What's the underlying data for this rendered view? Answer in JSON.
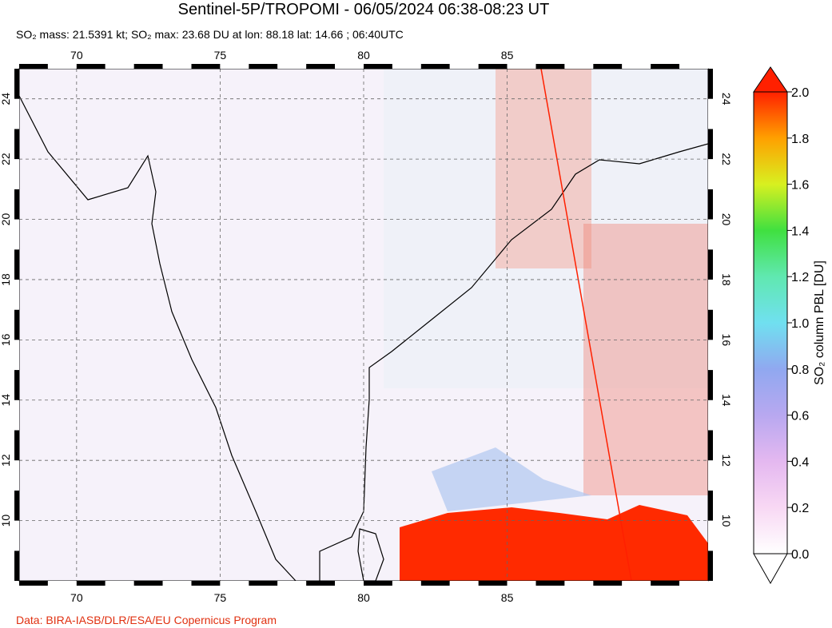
{
  "title": "Sentinel-5P/TROPOMI - 06/05/2024 06:38-08:23 UT",
  "subtitle": "SO₂ mass: 21.5391 kt; SO₂ max: 23.68 DU at lon: 88.18 lat: 14.66 ; 06:40UTC",
  "map": {
    "xlim": [
      68,
      92
    ],
    "ylim": [
      8,
      25
    ],
    "xticks": [
      70,
      75,
      80,
      85
    ],
    "yticks": [
      10,
      12,
      14,
      16,
      18,
      20,
      22,
      24
    ]
  },
  "colorbar": {
    "label": "SO₂ column PBL [DU]",
    "lim": [
      0,
      2
    ],
    "ticks": [
      {
        "value": 0,
        "label": "0.0"
      },
      {
        "value": 0.2,
        "label": "0.2"
      },
      {
        "value": 0.4,
        "label": "0.4"
      },
      {
        "value": 0.6,
        "label": "0.6"
      },
      {
        "value": 0.8,
        "label": "0.8"
      },
      {
        "value": 1,
        "label": "1.0"
      },
      {
        "value": 1.2,
        "label": "1.2"
      },
      {
        "value": 1.4,
        "label": "1.4"
      },
      {
        "value": 1.6,
        "label": "1.6"
      },
      {
        "value": 1.8,
        "label": "1.8"
      },
      {
        "value": 2,
        "label": "2.0"
      }
    ]
  },
  "credit": "Data: BIRA-IASB/DLR/ESA/EU Copernicus Program"
}
